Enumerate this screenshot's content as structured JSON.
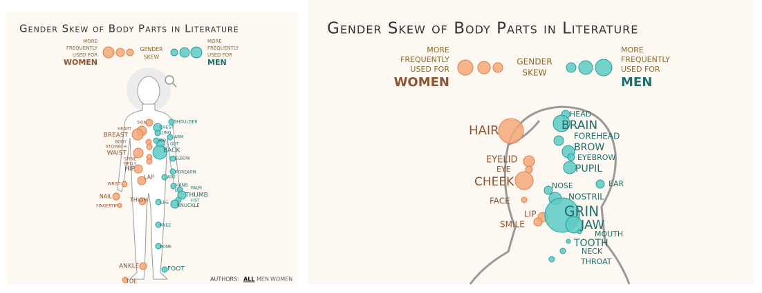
{
  "left": {
    "title": "Gender Skew of Body Parts in Literature",
    "legend": {
      "women_note": [
        "MORE",
        "FREQUENTLY",
        "USED FOR"
      ],
      "women": "WOMEN",
      "skew": [
        "GENDER",
        "SKEW"
      ],
      "men_note": [
        "MORE",
        "FREQUENTLY",
        "USED FOR"
      ],
      "men": "MEN"
    },
    "women_parts": [
      "SKIN",
      "HEART",
      "BREAST",
      "BODY",
      "STOMACH",
      "WAIST",
      "SPINE",
      "BELLY",
      "HIP",
      "LAP",
      "WRIST",
      "NAIL",
      "FINGERTIP",
      "THIGH",
      "ANKLE",
      "TOE"
    ],
    "men_parts": [
      "SHOULDER",
      "CHEST",
      "LUNG",
      "ARM",
      "GUT",
      "RIB",
      "BACK",
      "ELBOW",
      "FOREARM",
      "ASS",
      "HAND",
      "PALM",
      "THUMB",
      "FIST",
      "KNUCKLE",
      "LEG",
      "KNEE",
      "BONE",
      "FOOT"
    ],
    "authors": {
      "label": "AUTHORS:",
      "options": [
        "ALL",
        "MEN",
        "WOMEN"
      ]
    }
  },
  "right": {
    "title": "Gender Skew of Body Parts in Literature",
    "legend": {
      "women_note": [
        "MORE",
        "FREQUENTLY",
        "USED FOR"
      ],
      "women": "WOMEN",
      "skew": [
        "GENDER",
        "SKEW"
      ],
      "men_note": [
        "MORE",
        "FREQUENTLY",
        "USED FOR"
      ],
      "men": "MEN"
    },
    "women_parts": [
      "HAIR",
      "EYELID",
      "EYE",
      "CHEEK",
      "FACE",
      "LIP",
      "SMILE"
    ],
    "men_parts": [
      "HEAD",
      "BRAIN",
      "FOREHEAD",
      "BROW",
      "EYEBROW",
      "PUPIL",
      "NOSE",
      "EAR",
      "NOSTRIL",
      "GRIN",
      "JAW",
      "MOUTH",
      "TOOTH",
      "NECK",
      "THROAT"
    ]
  }
}
